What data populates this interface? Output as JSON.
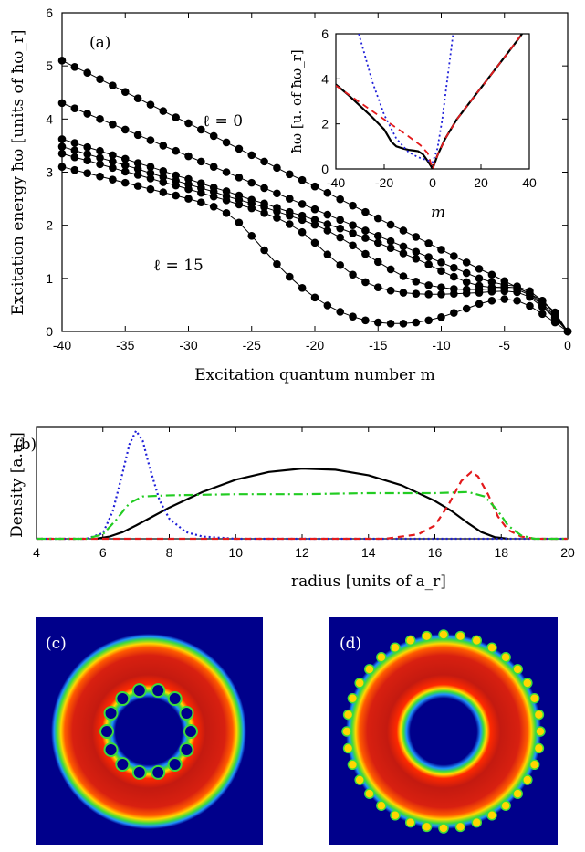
{
  "chart_data": [
    {
      "panel": "(a)",
      "type": "line",
      "xlabel": "Excitation quantum number m",
      "ylabel": "Excitation energy ħω [units of ħω_r]",
      "xlim": [
        -40,
        0
      ],
      "ylim": [
        0,
        6
      ],
      "xticks": [
        "-40",
        "-35",
        "-30",
        "-25",
        "-20",
        "-15",
        "-10",
        "-5",
        "0"
      ],
      "yticks": [
        "0",
        "1",
        "2",
        "3",
        "4",
        "5",
        "6"
      ],
      "annotations": [
        "ℓ = 0",
        "ℓ = 15"
      ],
      "markers": "filled circles",
      "x": [
        -40,
        -39,
        -38,
        -37,
        -36,
        -35,
        -34,
        -33,
        -32,
        -31,
        -30,
        -29,
        -28,
        -27,
        -26,
        -25,
        -24,
        -23,
        -22,
        -21,
        -20,
        -19,
        -18,
        -17,
        -16,
        -15,
        -14,
        -13,
        -12,
        -11,
        -10,
        -9,
        -8,
        -7,
        -6,
        -5,
        -4,
        -3,
        -2,
        -1,
        0
      ],
      "series": [
        {
          "values": [
            5.1,
            4.98,
            4.87,
            4.75,
            4.63,
            4.51,
            4.39,
            4.27,
            4.15,
            4.03,
            3.92,
            3.8,
            3.68,
            3.56,
            3.44,
            3.32,
            3.2,
            3.08,
            2.96,
            2.85,
            2.73,
            2.61,
            2.49,
            2.37,
            2.25,
            2.13,
            2.01,
            1.9,
            1.78,
            1.66,
            1.54,
            1.42,
            1.3,
            1.18,
            1.07,
            0.95,
            0.83,
            0.71,
            0.58,
            0.36,
            0.0
          ]
        },
        {
          "values": [
            4.3,
            4.2,
            4.1,
            4.0,
            3.9,
            3.8,
            3.7,
            3.6,
            3.5,
            3.4,
            3.3,
            3.2,
            3.1,
            3.0,
            2.9,
            2.8,
            2.7,
            2.6,
            2.5,
            2.4,
            2.3,
            2.2,
            2.1,
            2.0,
            1.9,
            1.8,
            1.7,
            1.6,
            1.5,
            1.4,
            1.3,
            1.2,
            1.1,
            1.0,
            0.93,
            0.88,
            0.85,
            0.76,
            0.58,
            0.33,
            0.0
          ]
        },
        {
          "values": [
            3.62,
            3.55,
            3.47,
            3.4,
            3.32,
            3.25,
            3.17,
            3.1,
            3.02,
            2.94,
            2.87,
            2.79,
            2.71,
            2.64,
            2.56,
            2.48,
            2.41,
            2.33,
            2.25,
            2.18,
            2.1,
            2.02,
            1.94,
            1.85,
            1.76,
            1.67,
            1.57,
            1.47,
            1.37,
            1.26,
            1.14,
            1.03,
            0.93,
            0.86,
            0.83,
            0.84,
            0.82,
            0.72,
            0.52,
            0.3,
            0.0
          ]
        },
        {
          "values": [
            3.48,
            3.41,
            3.34,
            3.27,
            3.2,
            3.13,
            3.06,
            2.98,
            2.91,
            2.84,
            2.77,
            2.7,
            2.63,
            2.55,
            2.48,
            2.41,
            2.34,
            2.26,
            2.18,
            2.1,
            2.01,
            1.9,
            1.77,
            1.62,
            1.46,
            1.31,
            1.17,
            1.04,
            0.94,
            0.87,
            0.83,
            0.8,
            0.79,
            0.79,
            0.8,
            0.81,
            0.79,
            0.69,
            0.49,
            0.27,
            0.0
          ]
        },
        {
          "values": [
            3.35,
            3.28,
            3.22,
            3.15,
            3.08,
            3.01,
            2.95,
            2.88,
            2.81,
            2.75,
            2.68,
            2.61,
            2.54,
            2.47,
            2.39,
            2.32,
            2.23,
            2.14,
            2.02,
            1.87,
            1.67,
            1.45,
            1.25,
            1.07,
            0.93,
            0.83,
            0.77,
            0.73,
            0.71,
            0.7,
            0.7,
            0.71,
            0.72,
            0.73,
            0.75,
            0.76,
            0.74,
            0.65,
            0.46,
            0.25,
            0.0
          ]
        },
        {
          "values": [
            3.1,
            3.04,
            2.98,
            2.92,
            2.86,
            2.8,
            2.74,
            2.68,
            2.62,
            2.56,
            2.5,
            2.43,
            2.35,
            2.23,
            2.05,
            1.8,
            1.53,
            1.27,
            1.03,
            0.82,
            0.64,
            0.49,
            0.37,
            0.28,
            0.21,
            0.17,
            0.15,
            0.15,
            0.17,
            0.21,
            0.27,
            0.35,
            0.43,
            0.52,
            0.58,
            0.61,
            0.58,
            0.48,
            0.33,
            0.17,
            0.0
          ]
        }
      ]
    },
    {
      "panel": "(a) inset",
      "type": "line",
      "xlabel": "m",
      "ylabel": "ħω [u. of ħω_r]",
      "xlim": [
        -40,
        40
      ],
      "ylim": [
        0,
        6
      ],
      "xticks": [
        "-40",
        "-20",
        "0",
        "20",
        "40"
      ],
      "yticks": [
        "0",
        "2",
        "4",
        "6"
      ],
      "series": [
        {
          "style": "solid",
          "color": "#000000",
          "x": [
            -40,
            -35,
            -30,
            -25,
            -20,
            -17,
            -15,
            -12,
            -10,
            -8,
            -6,
            -4,
            -2,
            -1,
            0,
            2,
            5,
            10,
            15,
            20,
            25,
            30,
            35,
            37
          ],
          "y": [
            3.75,
            3.3,
            2.8,
            2.3,
            1.75,
            1.2,
            1.0,
            0.9,
            0.85,
            0.82,
            0.79,
            0.65,
            0.35,
            0.18,
            0.0,
            0.6,
            1.3,
            2.2,
            2.9,
            3.6,
            4.3,
            5.0,
            5.7,
            6.0
          ]
        },
        {
          "style": "dashed",
          "color": "#e31a1c",
          "x": [
            -40,
            -30,
            -20,
            -10,
            -5,
            -2,
            0,
            2,
            5,
            10,
            20,
            30,
            37
          ],
          "y": [
            3.7,
            2.95,
            2.2,
            1.45,
            1.05,
            0.7,
            0.0,
            0.6,
            1.3,
            2.2,
            3.6,
            5.0,
            6.0
          ]
        },
        {
          "style": "dotted",
          "color": "#1f1fd8",
          "x": [
            -30.5,
            -25,
            -20,
            -15,
            -10,
            -6,
            -2,
            0,
            2,
            4,
            6,
            8.5
          ],
          "y": [
            6.0,
            3.9,
            2.4,
            1.35,
            0.75,
            0.52,
            0.38,
            0.3,
            0.9,
            2.2,
            3.9,
            6.0
          ]
        }
      ]
    },
    {
      "panel": "(b)",
      "type": "line",
      "xlabel": "radius [units of a_r]",
      "ylabel": "Density [a.u.]",
      "xlim": [
        4,
        20
      ],
      "ylim": [
        0,
        1
      ],
      "xticks": [
        "4",
        "6",
        "8",
        "10",
        "12",
        "14",
        "16",
        "18",
        "20"
      ],
      "series": [
        {
          "style": "solid",
          "color": "#000000",
          "x": [
            5.8,
            6.2,
            6.6,
            7,
            7.5,
            8,
            9,
            10,
            11,
            12,
            13,
            14,
            15,
            16,
            16.5,
            17,
            17.4,
            17.8,
            18.2
          ],
          "y": [
            0.0,
            0.02,
            0.06,
            0.12,
            0.2,
            0.28,
            0.42,
            0.53,
            0.6,
            0.63,
            0.62,
            0.57,
            0.48,
            0.34,
            0.25,
            0.14,
            0.06,
            0.015,
            0.0
          ]
        },
        {
          "style": "dotted",
          "color": "#1f1fd8",
          "x": [
            4,
            5.5,
            6,
            6.3,
            6.6,
            6.8,
            7.0,
            7.2,
            7.4,
            7.7,
            8,
            8.5,
            9,
            10,
            20
          ],
          "y": [
            0,
            0,
            0.05,
            0.25,
            0.6,
            0.85,
            0.97,
            0.88,
            0.65,
            0.35,
            0.18,
            0.06,
            0.02,
            0.0,
            0.0
          ]
        },
        {
          "style": "dashed",
          "color": "#e31a1c",
          "x": [
            4,
            14.5,
            15.5,
            16,
            16.4,
            16.8,
            17.1,
            17.3,
            17.6,
            17.9,
            18.2,
            18.6,
            19,
            20
          ],
          "y": [
            0,
            0,
            0.04,
            0.12,
            0.3,
            0.52,
            0.6,
            0.56,
            0.4,
            0.2,
            0.08,
            0.02,
            0.0,
            0.0
          ]
        },
        {
          "style": "dash-dot",
          "color": "#22cc22",
          "x": [
            4,
            5.5,
            6,
            6.4,
            6.8,
            7.2,
            8,
            10,
            12,
            14,
            16,
            17,
            17.5,
            17.9,
            18.2,
            18.6,
            19,
            20
          ],
          "y": [
            0,
            0,
            0.04,
            0.17,
            0.32,
            0.38,
            0.39,
            0.4,
            0.4,
            0.41,
            0.41,
            0.42,
            0.38,
            0.25,
            0.12,
            0.03,
            0.0,
            0.0
          ]
        }
      ]
    }
  ],
  "images": [
    {
      "label": "(c)",
      "outer_ripples": 0,
      "inner_ripples": 14
    },
    {
      "label": "(d)",
      "outer_ripples": 36,
      "inner_ripples": 0
    }
  ]
}
